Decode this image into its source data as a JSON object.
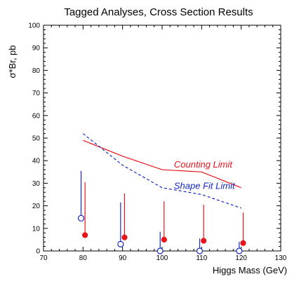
{
  "chart_data": {
    "type": "scatter",
    "title": "Tagged Analyses, Cross Section Results",
    "xlabel": "Higgs Mass (GeV)",
    "ylabel": "σ*Br, pb",
    "xlim": [
      70,
      130
    ],
    "ylim": [
      0,
      100
    ],
    "x_major_ticks": [
      70,
      80,
      90,
      100,
      110,
      120,
      130
    ],
    "x_tick_labels": [
      "70",
      "80",
      "90",
      "100",
      "110",
      "120",
      "130"
    ],
    "y_major_ticks": [
      0,
      10,
      20,
      30,
      40,
      50,
      60,
      70,
      80,
      90,
      100
    ],
    "y_tick_labels": [
      "0",
      "10",
      "20",
      "30",
      "40",
      "50",
      "60",
      "70",
      "80",
      "90",
      "100"
    ],
    "grid": false,
    "series": [
      {
        "type": "line",
        "style": "solid",
        "color": "#e8141c",
        "x": [
          80,
          90,
          100,
          110,
          120
        ],
        "y": [
          49,
          42,
          36,
          35,
          28
        ]
      },
      {
        "type": "line",
        "style": "dashed",
        "color": "#1428c8",
        "x": [
          80,
          90,
          100,
          110,
          120
        ],
        "y": [
          52,
          38,
          28,
          25,
          19
        ]
      },
      {
        "type": "points",
        "marker": "open-circle",
        "color": "#1428c8",
        "x": [
          79.5,
          89.5,
          99.5,
          109.5,
          119.5
        ],
        "y": [
          14.5,
          3,
          0,
          0,
          0
        ],
        "error_upper": [
          35.5,
          21.5,
          8.5,
          5.5,
          4
        ]
      },
      {
        "type": "points",
        "marker": "filled-circle",
        "color": "#e8141c",
        "x": [
          80.5,
          90.5,
          100.5,
          110.5,
          120.5
        ],
        "y": [
          7,
          6,
          5,
          4.5,
          3.5
        ],
        "error_upper": [
          30.5,
          25.5,
          22,
          20.5,
          17
        ]
      }
    ],
    "annotations": [
      {
        "text": "Counting Limit",
        "x": 103,
        "y": 37,
        "color": "#e8141c"
      },
      {
        "text": "Shape Fit Limit",
        "x": 103,
        "y": 27.5,
        "color": "#1428c8"
      }
    ]
  }
}
